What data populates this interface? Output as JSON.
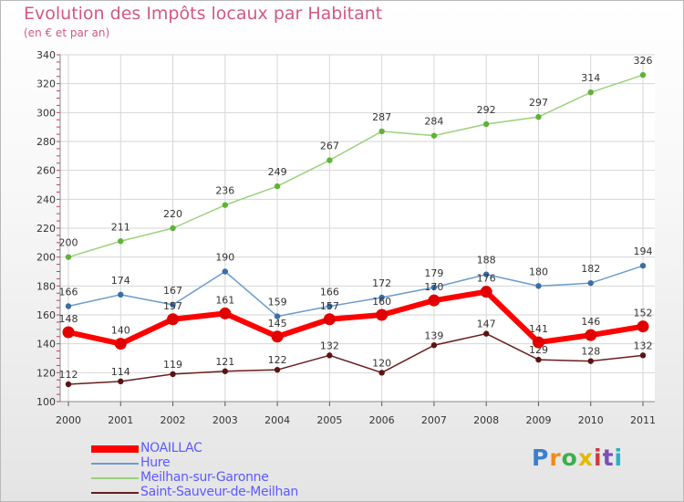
{
  "chart_data": {
    "type": "line",
    "title": "Evolution des Impôts locaux par Habitant",
    "subtitle": "(en € et par an)",
    "xlabel": "",
    "ylabel": "",
    "ylim": [
      100,
      340
    ],
    "y_ticks": [
      "100",
      "120",
      "140",
      "160",
      "180",
      "200",
      "220",
      "240",
      "260",
      "280",
      "300",
      "320",
      "340"
    ],
    "x": [
      "2000",
      "2001",
      "2002",
      "2003",
      "2004",
      "2005",
      "2006",
      "2007",
      "2008",
      "2009",
      "2010",
      "2011"
    ],
    "grid": true,
    "legend_position": "bottom-left",
    "series": [
      {
        "name": "NOAILLAC",
        "color": "#ff0000",
        "values": [
          148,
          140,
          157,
          161,
          145,
          157,
          160,
          170,
          176,
          141,
          146,
          152
        ],
        "labels": [
          "148",
          "140",
          "157",
          "161",
          "145",
          "157",
          "160",
          "170",
          "176",
          "141",
          "146",
          "152"
        ]
      },
      {
        "name": "Hure",
        "color": "#6a9ccc",
        "values": [
          166,
          174,
          167,
          190,
          159,
          166,
          172,
          179,
          188,
          180,
          182,
          194
        ],
        "labels": [
          "166",
          "174",
          "167",
          "190",
          "159",
          "166",
          "172",
          "179",
          "188",
          "180",
          "182",
          "194"
        ]
      },
      {
        "name": "Meilhan-sur-Garonne",
        "color": "#9bd17c",
        "values": [
          200,
          211,
          220,
          236,
          249,
          267,
          287,
          284,
          292,
          297,
          314,
          326
        ],
        "labels": [
          "200",
          "211",
          "220",
          "236",
          "249",
          "267",
          "287",
          "284",
          "292",
          "297",
          "314",
          "326"
        ]
      },
      {
        "name": "Saint-Sauveur-de-Meilhan",
        "color": "#6b1d1d",
        "values": [
          112,
          114,
          119,
          121,
          122,
          132,
          120,
          139,
          147,
          129,
          128,
          132
        ],
        "labels": [
          "112",
          "114",
          "119",
          "121",
          "122",
          "132",
          "120",
          "139",
          "147",
          "129",
          "128",
          "132"
        ]
      }
    ]
  },
  "brand": {
    "letters": [
      "P",
      "r",
      "o",
      "x",
      "i",
      "t",
      "i"
    ],
    "colors": [
      "#3a7fd0",
      "#f08a1c",
      "#3ab04a",
      "#e6b800",
      "#d23a3a",
      "#7a4fb8",
      "#2ab0c8"
    ]
  }
}
